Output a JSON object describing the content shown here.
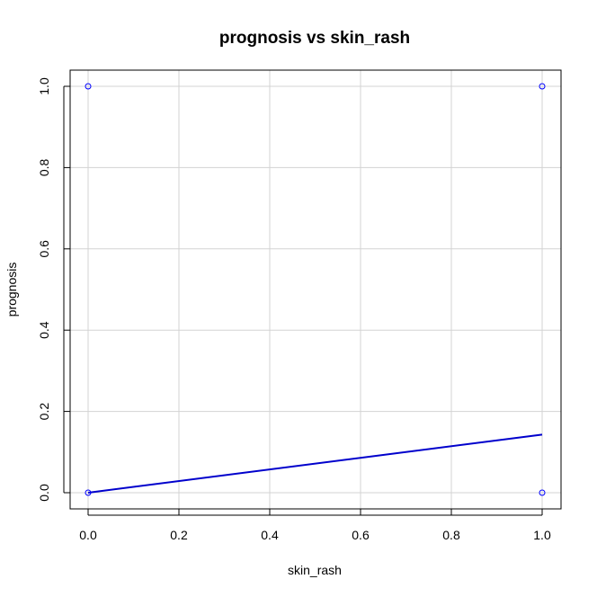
{
  "chart_data": {
    "type": "scatter",
    "title": "prognosis vs skin_rash",
    "xlabel": "skin_rash",
    "ylabel": "prognosis",
    "xlim": [
      0,
      1
    ],
    "ylim": [
      0,
      1
    ],
    "x_ticks": [
      "0.0",
      "0.2",
      "0.4",
      "0.6",
      "0.8",
      "1.0"
    ],
    "y_ticks": [
      "0.0",
      "0.2",
      "0.4",
      "0.6",
      "0.8",
      "1.0"
    ],
    "grid": true,
    "points": [
      {
        "x": 0,
        "y": 1
      },
      {
        "x": 1,
        "y": 1
      },
      {
        "x": 0,
        "y": 0
      },
      {
        "x": 1,
        "y": 0
      }
    ],
    "fit_line": {
      "x": [
        0,
        1
      ],
      "y": [
        0,
        0.143
      ]
    },
    "colors": {
      "points": "#0000ff",
      "line": "#0000cc",
      "grid": "#d3d3d3",
      "axes": "#000000"
    }
  }
}
